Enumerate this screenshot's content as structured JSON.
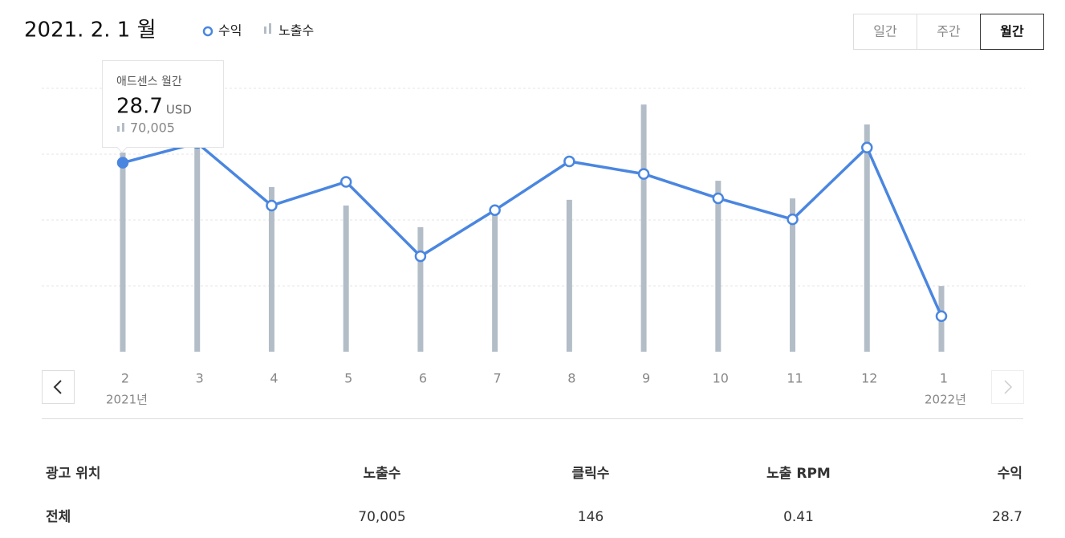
{
  "header": {
    "date": "2021. 2. 1 월",
    "buttons": [
      "일간",
      "주간",
      "월간"
    ],
    "active_button": 2
  },
  "chart_data": {
    "type": "bar-line",
    "categories": [
      "2",
      "3",
      "4",
      "5",
      "6",
      "7",
      "8",
      "9",
      "10",
      "11",
      "12",
      "1"
    ],
    "category_years": [
      "2021년",
      null,
      null,
      null,
      null,
      null,
      null,
      null,
      null,
      null,
      null,
      "2022년"
    ],
    "series": [
      {
        "name": "수익",
        "kind": "line",
        "color": "#4a86e0",
        "values": [
          28.7,
          31.7,
          22.2,
          25.8,
          14.5,
          21.5,
          28.9,
          27.0,
          23.3,
          20.1,
          31.0,
          5.4
        ]
      },
      {
        "name": "노출수",
        "kind": "bar",
        "axis": "y2",
        "color": "#b3bdc7",
        "values": [
          70005,
          75600,
          57900,
          51400,
          43800,
          49700,
          53400,
          86900,
          60100,
          53900,
          79900,
          23100
        ],
        "value_labels": [
          "70,005",
          null,
          null,
          null,
          null,
          null,
          null,
          null,
          null,
          null,
          null,
          null
        ]
      }
    ],
    "ylim": [
      0,
      40
    ],
    "y2lim": [
      0,
      92600
    ],
    "tooltip": {
      "title": "애드센스 월간",
      "index": 0,
      "unit": "USD"
    }
  },
  "table": {
    "header": [
      "광고 위치",
      "노출수",
      "클릭수",
      "노출 RPM",
      "수익"
    ],
    "rows": [
      [
        "전체",
        "70,005",
        "146",
        "0.41",
        "28.7"
      ]
    ]
  }
}
